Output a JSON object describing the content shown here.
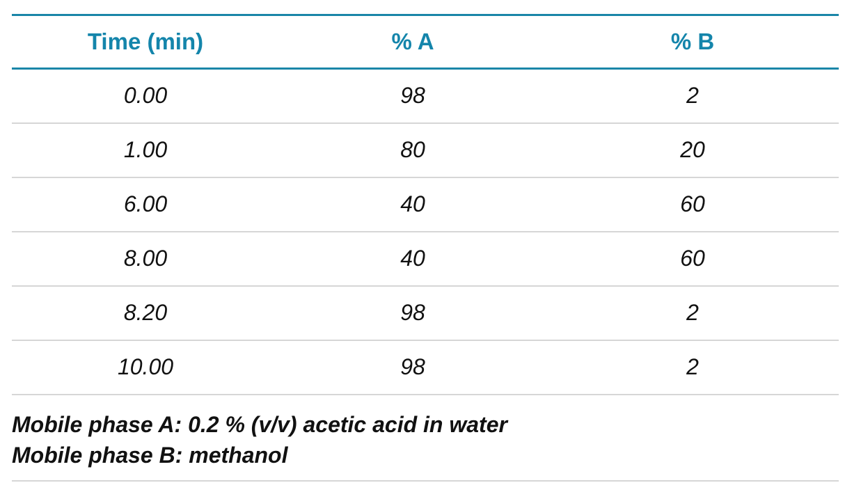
{
  "table": {
    "headers": [
      "Time (min)",
      "% A",
      "% B"
    ],
    "rows": [
      [
        "0.00",
        "98",
        "2"
      ],
      [
        "1.00",
        "80",
        "20"
      ],
      [
        "6.00",
        "40",
        "60"
      ],
      [
        "8.00",
        "40",
        "60"
      ],
      [
        "8.20",
        "98",
        "2"
      ],
      [
        "10.00",
        "98",
        "2"
      ]
    ]
  },
  "notes": [
    "Mobile phase A: 0.2 % (v/v) acetic acid in water",
    "Mobile phase B: methanol"
  ],
  "colors": {
    "header_text": "#1485ab",
    "header_rule": "#1a86a8",
    "row_rule": "#d6d6d6",
    "body_text": "#111111"
  }
}
